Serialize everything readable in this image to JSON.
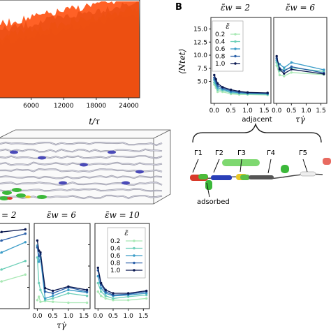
{
  "panel_letter": "B",
  "series_colors": [
    "#a8e8b4",
    "#6ccfb8",
    "#3a9cc8",
    "#2a5fa8",
    "#0a1850"
  ],
  "chart_data": [
    {
      "id": "trace-panel",
      "type": "area",
      "xlabel": "t/τ",
      "xticks": [
        6000,
        12000,
        18000,
        24000
      ],
      "xlim": [
        0,
        26000
      ],
      "note": "stacked colour traces, partially cropped at left"
    },
    {
      "id": "B-left",
      "type": "line",
      "title": "ε̃w = 2",
      "ylabel": "⟨Ntet⟩",
      "xlabel": "",
      "xticks": [
        "0.0",
        "0.5",
        "1.0",
        "1.5"
      ],
      "yticks": [
        "5.0",
        "7.5",
        "10.0",
        "12.5",
        "15.0"
      ],
      "xlim": [
        -0.1,
        1.7
      ],
      "ylim": [
        0.8,
        17.2
      ],
      "x": [
        0.0,
        0.05,
        0.1,
        0.25,
        0.5,
        0.75,
        1.0,
        1.6
      ],
      "legend_title": "ε̃",
      "legend": [
        "0.2",
        "0.4",
        "0.6",
        "0.8",
        "1.0"
      ],
      "series": [
        {
          "name": "0.2",
          "color": "#a8e8b4",
          "values": [
            4.4,
            3.8,
            3.0,
            3.0,
            2.6,
            2.5,
            2.5,
            2.4
          ]
        },
        {
          "name": "0.4",
          "color": "#6ccfb8",
          "values": [
            4.8,
            4.2,
            3.4,
            3.3,
            2.8,
            2.7,
            2.6,
            2.5
          ]
        },
        {
          "name": "0.6",
          "color": "#3a9cc8",
          "values": [
            5.3,
            4.6,
            3.8,
            3.5,
            3.0,
            2.8,
            2.7,
            2.6
          ]
        },
        {
          "name": "0.8",
          "color": "#2a5fa8",
          "values": [
            5.7,
            5.0,
            4.2,
            3.7,
            3.2,
            2.9,
            2.8,
            2.7
          ]
        },
        {
          "name": "1.0",
          "color": "#0a1850",
          "values": [
            6.2,
            5.4,
            4.6,
            3.9,
            3.4,
            3.1,
            2.9,
            2.8
          ]
        }
      ]
    },
    {
      "id": "B-right",
      "type": "line",
      "title": "ε̃w = 6",
      "xlabel": "τγ̇",
      "xticks": [
        "0.0",
        "0.5",
        "1.0",
        "1.5"
      ],
      "xlim": [
        -0.1,
        1.7
      ],
      "ylim": [
        0.8,
        17.2
      ],
      "x": [
        0.0,
        0.1,
        0.25,
        0.5,
        1.6
      ],
      "series": [
        {
          "name": "0.2",
          "color": "#a8e8b4",
          "values": [
            8.0,
            6.2,
            6.0,
            6.7,
            6.3
          ]
        },
        {
          "name": "0.4",
          "color": "#6ccfb8",
          "values": [
            8.6,
            7.0,
            7.2,
            7.6,
            6.9
          ]
        },
        {
          "name": "0.6",
          "color": "#3a9cc8",
          "values": [
            9.0,
            8.3,
            7.6,
            8.6,
            7.2
          ]
        },
        {
          "name": "0.8",
          "color": "#2a5fa8",
          "values": [
            9.4,
            7.5,
            7.0,
            7.8,
            6.6
          ]
        },
        {
          "name": "1.0",
          "color": "#0a1850",
          "values": [
            9.8,
            7.3,
            6.5,
            7.3,
            6.4
          ]
        }
      ]
    },
    {
      "id": "C-left",
      "type": "line",
      "title": "= 2",
      "cropped": true,
      "x": [
        0.0,
        0.5,
        1.0,
        1.6
      ],
      "series": [
        {
          "name": "0.2",
          "color": "#a8e8b4",
          "values": [
            0.2,
            0.26,
            0.32,
            0.4
          ]
        },
        {
          "name": "0.4",
          "color": "#6ccfb8",
          "values": [
            0.3,
            0.38,
            0.46,
            0.56
          ]
        },
        {
          "name": "0.6",
          "color": "#3a9cc8",
          "values": [
            0.45,
            0.56,
            0.66,
            0.78
          ]
        },
        {
          "name": "0.8",
          "color": "#2a5fa8",
          "values": [
            0.62,
            0.72,
            0.8,
            0.88
          ]
        },
        {
          "name": "1.0",
          "color": "#0a1850",
          "values": [
            0.8,
            0.86,
            0.9,
            0.93
          ]
        }
      ]
    },
    {
      "id": "C-mid",
      "type": "line",
      "title": "ε̃w = 6",
      "xlabel": "τγ̇",
      "xticks": [
        "0.0",
        "0.5",
        "1.0",
        "1.5"
      ],
      "xlim": [
        -0.1,
        1.7
      ],
      "ylim": [
        0,
        1
      ],
      "x": [
        0.0,
        0.05,
        0.1,
        0.25,
        0.5,
        1.0,
        1.6
      ],
      "series": [
        {
          "name": "0.2",
          "color": "#a8e8b4",
          "values": [
            0.1,
            0.14,
            0.08,
            0.09,
            0.08,
            0.07,
            0.07
          ]
        },
        {
          "name": "0.4",
          "color": "#6ccfb8",
          "values": [
            0.6,
            0.3,
            0.22,
            0.1,
            0.12,
            0.18,
            0.15
          ]
        },
        {
          "name": "0.6",
          "color": "#3a9cc8",
          "values": [
            0.74,
            0.55,
            0.6,
            0.12,
            0.15,
            0.22,
            0.19
          ]
        },
        {
          "name": "0.8",
          "color": "#2a5fa8",
          "values": [
            0.72,
            0.62,
            0.64,
            0.2,
            0.18,
            0.25,
            0.2
          ]
        },
        {
          "name": "1.0",
          "color": "#0a1850",
          "values": [
            0.8,
            0.68,
            0.66,
            0.24,
            0.21,
            0.26,
            0.22
          ]
        }
      ]
    },
    {
      "id": "C-right",
      "type": "line",
      "title": "ε̃w = 10",
      "xticks": [
        "0.0",
        "0.5",
        "1.0",
        "1.5"
      ],
      "xlim": [
        -0.1,
        1.7
      ],
      "ylim": [
        0,
        1
      ],
      "legend_title": "ε̃",
      "legend": [
        "0.2",
        "0.4",
        "0.6",
        "0.8",
        "1.0"
      ],
      "x": [
        0.0,
        0.1,
        0.25,
        0.5,
        1.0,
        1.6
      ],
      "series": [
        {
          "name": "0.2",
          "color": "#a8e8b4",
          "values": [
            0.2,
            0.15,
            0.12,
            0.1,
            0.1,
            0.12
          ]
        },
        {
          "name": "0.4",
          "color": "#6ccfb8",
          "values": [
            0.3,
            0.2,
            0.15,
            0.12,
            0.14,
            0.16
          ]
        },
        {
          "name": "0.6",
          "color": "#3a9cc8",
          "values": [
            0.38,
            0.24,
            0.18,
            0.15,
            0.16,
            0.18
          ]
        },
        {
          "name": "0.8",
          "color": "#2a5fa8",
          "values": [
            0.45,
            0.28,
            0.2,
            0.16,
            0.17,
            0.2
          ]
        },
        {
          "name": "1.0",
          "color": "#0a1850",
          "values": [
            0.48,
            0.3,
            0.22,
            0.18,
            0.18,
            0.21
          ]
        }
      ]
    }
  ],
  "schematic": {
    "brace_label": "adjacent",
    "gamma_labels": [
      "Γ1",
      "Γ2",
      "Γ3",
      "Γ4",
      "Γ5"
    ],
    "adsorbed_label": "adsorbed"
  }
}
